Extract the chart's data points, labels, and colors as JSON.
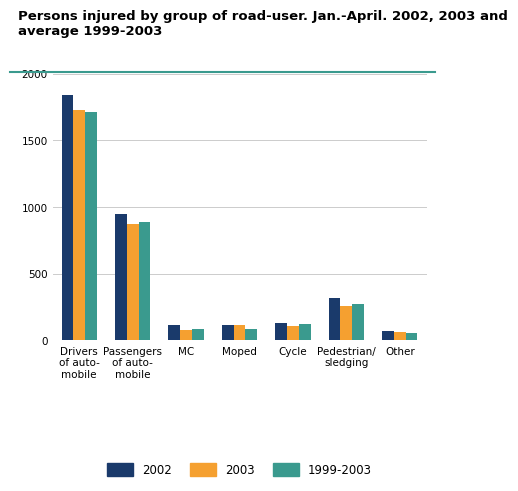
{
  "title_line1": "Persons injured by group of road-user. Jan.-April. 2002, 2003 and",
  "title_line2": "average 1999-2003",
  "categories": [
    "Drivers\nof auto-\nmobile",
    "Passengers\nof auto-\nmobile",
    "MC",
    "Moped",
    "Cycle",
    "Pedestrian/\nsledging",
    "Other"
  ],
  "series": {
    "2002": [
      1840,
      950,
      115,
      115,
      130,
      320,
      70
    ],
    "2003": [
      1730,
      875,
      80,
      115,
      110,
      260,
      65
    ],
    "1999-2003": [
      1715,
      890,
      85,
      85,
      125,
      275,
      55
    ]
  },
  "colors": {
    "2002": "#1a3a6b",
    "2003": "#f5a030",
    "1999-2003": "#3a9a8e"
  },
  "ylim": [
    0,
    2000
  ],
  "yticks": [
    0,
    500,
    1000,
    1500,
    2000
  ],
  "bar_width": 0.22,
  "background_color": "#ffffff",
  "grid_color": "#cccccc",
  "title_fontsize": 9.5,
  "tick_fontsize": 7.5,
  "legend_fontsize": 8.5,
  "separator_color": "#3a9a8e"
}
